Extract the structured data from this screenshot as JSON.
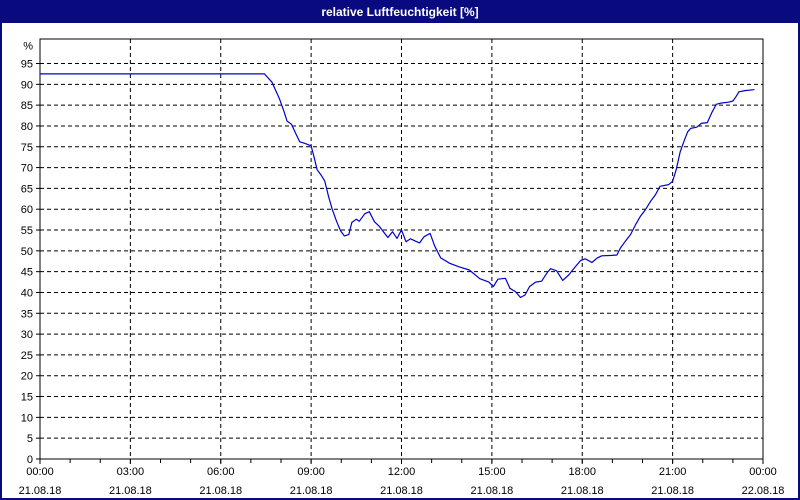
{
  "window": {
    "title": "relative Luftfeuchtigkeit [%]"
  },
  "colors": {
    "titlebar_bg": "#0a0a80",
    "titlebar_text": "#ffffff",
    "window_border": "#0a0a80",
    "plot_bg": "#ffffff",
    "frame": "#000000",
    "grid": "#000000",
    "tick_text": "#000000",
    "line": "#0000cd"
  },
  "chart_data": {
    "type": "line",
    "title": "relative Luftfeuchtigkeit [%]",
    "y_unit_label": "%",
    "ylim": [
      0,
      101
    ],
    "y_ticks": [
      0,
      5,
      10,
      15,
      20,
      25,
      30,
      35,
      40,
      45,
      50,
      55,
      60,
      65,
      70,
      75,
      80,
      85,
      90,
      95
    ],
    "grid": "dashed",
    "legend": "none",
    "x_axis": {
      "range_hours": [
        0,
        24
      ],
      "minor_tick_hours": 1,
      "major_ticks": [
        {
          "hours": 0,
          "time": "00:00",
          "date": "21.08.18"
        },
        {
          "hours": 3,
          "time": "03:00",
          "date": "21.08.18"
        },
        {
          "hours": 6,
          "time": "06:00",
          "date": "21.08.18"
        },
        {
          "hours": 9,
          "time": "09:00",
          "date": "21.08.18"
        },
        {
          "hours": 12,
          "time": "12:00",
          "date": "21.08.18"
        },
        {
          "hours": 15,
          "time": "15:00",
          "date": "21.08.18"
        },
        {
          "hours": 18,
          "time": "18:00",
          "date": "21.08.18"
        },
        {
          "hours": 21,
          "time": "21:00",
          "date": "21.08.18"
        },
        {
          "hours": 24,
          "time": "00:00",
          "date": "22.08.18"
        }
      ]
    },
    "series": [
      {
        "name": "relative Luftfeuchtigkeit",
        "color": "#0000cd",
        "points_hours_value": [
          [
            0,
            92.5
          ],
          [
            7.45,
            92.5
          ],
          [
            7.7,
            90.5
          ],
          [
            7.95,
            86.5
          ],
          [
            8.1,
            83.5
          ],
          [
            8.2,
            81.2
          ],
          [
            8.35,
            80.4
          ],
          [
            8.5,
            78
          ],
          [
            8.62,
            76.2
          ],
          [
            8.8,
            75.8
          ],
          [
            9,
            75.2
          ],
          [
            9.1,
            72.5
          ],
          [
            9.2,
            69.5
          ],
          [
            9.33,
            68.2
          ],
          [
            9.45,
            66.8
          ],
          [
            9.58,
            63
          ],
          [
            9.7,
            60
          ],
          [
            9.85,
            57
          ],
          [
            9.98,
            54.8
          ],
          [
            10.1,
            53.6
          ],
          [
            10.25,
            53.9
          ],
          [
            10.35,
            56.8
          ],
          [
            10.5,
            57.6
          ],
          [
            10.6,
            57.1
          ],
          [
            10.78,
            58.9
          ],
          [
            10.93,
            59.4
          ],
          [
            11.1,
            57
          ],
          [
            11.25,
            56
          ],
          [
            11.4,
            54.6
          ],
          [
            11.55,
            53.2
          ],
          [
            11.7,
            54.6
          ],
          [
            11.85,
            53
          ],
          [
            12,
            55
          ],
          [
            12.15,
            52.2
          ],
          [
            12.3,
            52.9
          ],
          [
            12.45,
            52.4
          ],
          [
            12.6,
            51.9
          ],
          [
            12.75,
            53.4
          ],
          [
            12.95,
            54.2
          ],
          [
            13.1,
            51.2
          ],
          [
            13.3,
            48.3
          ],
          [
            13.6,
            47
          ],
          [
            13.9,
            46.2
          ],
          [
            14.25,
            45.4
          ],
          [
            14.6,
            43.3
          ],
          [
            14.9,
            42.5
          ],
          [
            15.05,
            41.4
          ],
          [
            15.2,
            43.2
          ],
          [
            15.45,
            43.4
          ],
          [
            15.6,
            41
          ],
          [
            15.78,
            40.2
          ],
          [
            15.95,
            38.8
          ],
          [
            16.1,
            39.4
          ],
          [
            16.25,
            41.4
          ],
          [
            16.45,
            42.5
          ],
          [
            16.65,
            42.7
          ],
          [
            16.85,
            44.9
          ],
          [
            16.95,
            45.7
          ],
          [
            17.15,
            45.2
          ],
          [
            17.35,
            42.9
          ],
          [
            17.55,
            44.2
          ],
          [
            17.75,
            46
          ],
          [
            17.95,
            47.7
          ],
          [
            18.1,
            48.1
          ],
          [
            18.32,
            47.2
          ],
          [
            18.5,
            48.3
          ],
          [
            18.65,
            48.8
          ],
          [
            19,
            48.9
          ],
          [
            19.15,
            49
          ],
          [
            19.27,
            50.7
          ],
          [
            19.43,
            52.3
          ],
          [
            19.6,
            53.9
          ],
          [
            19.77,
            56.3
          ],
          [
            19.93,
            58.3
          ],
          [
            20.1,
            59.9
          ],
          [
            20.27,
            61.9
          ],
          [
            20.43,
            63.5
          ],
          [
            20.58,
            65.5
          ],
          [
            20.87,
            65.9
          ],
          [
            21,
            66.7
          ],
          [
            21.12,
            69.5
          ],
          [
            21.25,
            73.8
          ],
          [
            21.4,
            76.8
          ],
          [
            21.5,
            78.6
          ],
          [
            21.6,
            79.4
          ],
          [
            21.8,
            79.7
          ],
          [
            21.95,
            80.6
          ],
          [
            22.15,
            80.8
          ],
          [
            22.3,
            83.2
          ],
          [
            22.45,
            85.2
          ],
          [
            22.6,
            85.5
          ],
          [
            22.85,
            85.7
          ],
          [
            23,
            86
          ],
          [
            23.1,
            87
          ],
          [
            23.2,
            88.2
          ],
          [
            23.4,
            88.5
          ],
          [
            23.7,
            88.7
          ]
        ]
      }
    ]
  }
}
